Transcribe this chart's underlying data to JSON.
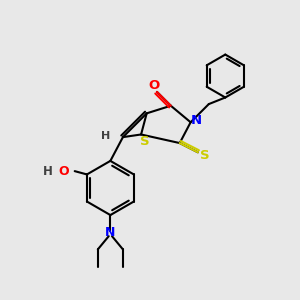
{
  "background_color": "#e8e8e8",
  "bond_color": "#000000",
  "bond_width": 1.5,
  "atom_colors": {
    "O": "#ff0000",
    "N": "#0000ff",
    "S": "#cccc00",
    "C": "#000000",
    "H": "#404040"
  },
  "font_size": 8.5
}
